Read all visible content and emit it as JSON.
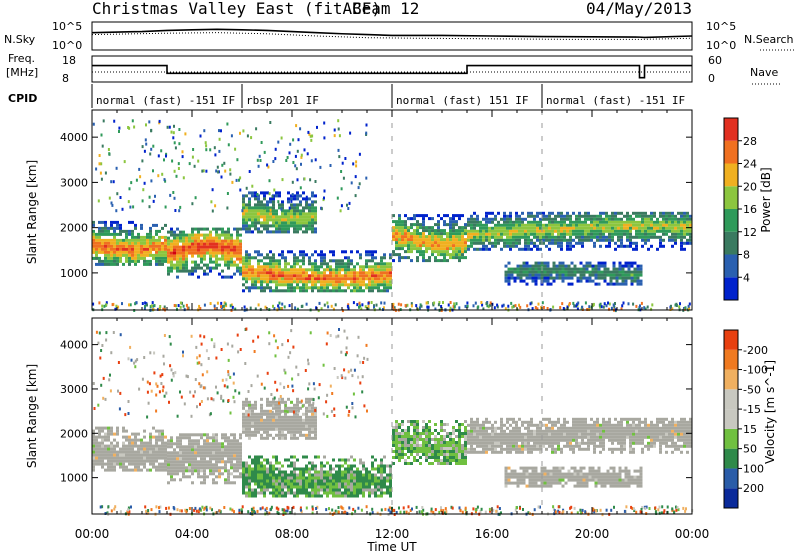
{
  "header": {
    "title": "Christmas Valley East (fitACF)",
    "beam": "Beam 12",
    "date": "04/May/2013"
  },
  "colors": {
    "power_scale": [
      "#0022cc",
      "#2a60b0",
      "#3a7a60",
      "#2f9a5a",
      "#8cc63f",
      "#f0b020",
      "#f07020",
      "#e23020",
      "#d00010"
    ],
    "velocity_scale": [
      "#d00010",
      "#e84010",
      "#f07a20",
      "#f0b060",
      "#c8c8c0",
      "#c8c8c0",
      "#70c040",
      "#2f8a4a",
      "#2a5ca8",
      "#0a2a9a"
    ],
    "ground_scatter": "#a8a8a0"
  },
  "chart_data": [
    {
      "type": "line",
      "panel": "noise",
      "left_label": "N.Sky",
      "right_label": "N.Search",
      "left_ticks": [
        "10^5",
        "10^0"
      ],
      "right_ticks": [
        "10^5",
        "10^0"
      ],
      "series": [
        {
          "name": "N.Sky",
          "style": "solid",
          "x": [
            0,
            2,
            3,
            4,
            5,
            6,
            7,
            8,
            9,
            10,
            11,
            12,
            14,
            16,
            18,
            20,
            21.9,
            22.1,
            24
          ],
          "y": [
            0.62,
            0.66,
            0.7,
            0.72,
            0.74,
            0.72,
            0.7,
            0.66,
            0.62,
            0.58,
            0.55,
            0.52,
            0.52,
            0.5,
            0.48,
            0.47,
            0.46,
            0.45,
            0.5
          ]
        },
        {
          "name": "N.Search",
          "style": "dotted",
          "x": [
            0,
            3,
            5,
            7,
            9,
            11,
            13,
            16,
            19,
            22,
            24
          ],
          "y": [
            0.55,
            0.6,
            0.62,
            0.58,
            0.5,
            0.44,
            0.42,
            0.4,
            0.38,
            0.38,
            0.42
          ]
        }
      ]
    },
    {
      "type": "line",
      "panel": "frequency",
      "left_label": "Freq.",
      "left_unit": "[MHz]",
      "right_label": "Nave",
      "left_ticks": [
        "18",
        "8"
      ],
      "right_ticks": [
        "60",
        "0"
      ],
      "series": [
        {
          "name": "Freq.",
          "style": "solid",
          "x": [
            0,
            3,
            3,
            15,
            15,
            21.9,
            21.9,
            22.1,
            22.1,
            24
          ],
          "y": [
            13.6,
            13.6,
            10,
            10,
            13.6,
            13.6,
            8,
            8,
            13.6,
            13.6
          ]
        },
        {
          "name": "Nave",
          "style": "dotted",
          "x": [
            0,
            24
          ],
          "y": [
            23,
            23
          ]
        }
      ]
    },
    {
      "type": "table",
      "panel": "cpid",
      "label": "CPID",
      "segments": [
        {
          "start": 0,
          "end": 6,
          "text": "normal (fast) -151 IF"
        },
        {
          "start": 6,
          "end": 12,
          "text": "rbsp 201 IF"
        },
        {
          "start": 12,
          "end": 18,
          "text": "normal (fast) 151 IF"
        },
        {
          "start": 18,
          "end": 24,
          "text": "normal (fast) -151 IF"
        }
      ]
    },
    {
      "type": "heatmap",
      "panel": "power",
      "ylabel": "Slant Range [km]",
      "ylim": [
        180,
        4600
      ],
      "yticks": [
        1000,
        2000,
        3000,
        4000
      ],
      "colorbar_label": "Power [dB]",
      "colorbar_ticks": [
        4,
        8,
        12,
        16,
        20,
        24,
        28
      ],
      "clim": [
        0,
        32
      ]
    },
    {
      "type": "heatmap",
      "panel": "velocity",
      "ylabel": "Slant Range [km]",
      "ylim": [
        180,
        4600
      ],
      "yticks": [
        1000,
        2000,
        3000,
        4000
      ],
      "colorbar_label": "Velocity [m s^-1]",
      "colorbar_ticks": [
        200,
        100,
        50,
        15,
        -15,
        -50,
        -100,
        -200
      ],
      "clim": [
        -250,
        250
      ]
    }
  ],
  "xaxis": {
    "label": "Time UT",
    "ticks": [
      "00:00",
      "04:00",
      "08:00",
      "12:00",
      "16:00",
      "20:00",
      "00:00"
    ],
    "range": [
      0,
      24
    ]
  },
  "scatter_regions": [
    {
      "name": "ionospheric-band-dawn",
      "t0": 0,
      "t1": 3,
      "r0": 1200,
      "r1": 2150,
      "power": 24,
      "vel": 0
    },
    {
      "name": "ionospheric-band-morning",
      "t0": 3,
      "t1": 6,
      "r0": 900,
      "r1": 2000,
      "power": 26,
      "vel": 0
    },
    {
      "name": "rbsp-lower-band",
      "t0": 6,
      "t1": 12,
      "r0": 600,
      "r1": 1500,
      "power": 24,
      "vel": 60
    },
    {
      "name": "rbsp-upper-band",
      "t0": 6,
      "t1": 9,
      "r0": 1900,
      "r1": 2800,
      "power": 18,
      "vel": 0
    },
    {
      "name": "midday-band",
      "t0": 12,
      "t1": 15,
      "r0": 1300,
      "r1": 2300,
      "power": 22,
      "vel": 40
    },
    {
      "name": "afternoon-band",
      "t0": 15,
      "t1": 24,
      "r0": 1550,
      "r1": 2350,
      "power": 18,
      "vel": 0
    },
    {
      "name": "afternoon-lower-band",
      "t0": 16.5,
      "t1": 22,
      "r0": 780,
      "r1": 1250,
      "power": 12,
      "vel": 0
    }
  ]
}
